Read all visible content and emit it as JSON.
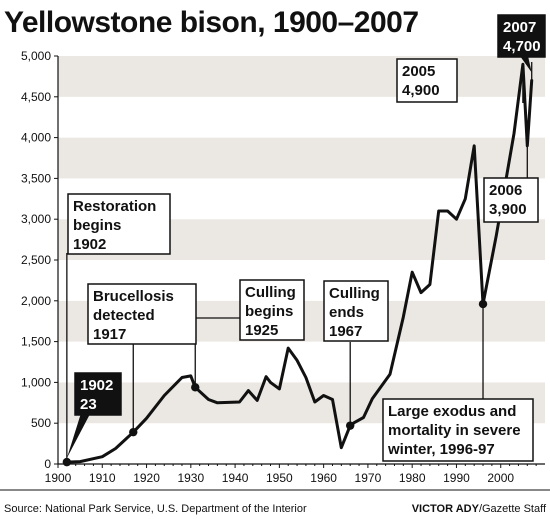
{
  "chart_data": {
    "type": "line",
    "title": "Yellowstone bison, 1900–2007",
    "xlabel": "",
    "ylabel": "",
    "xlim": [
      1900,
      2010
    ],
    "ylim": [
      0,
      5000
    ],
    "x_ticks": [
      "1900",
      "1910",
      "1920",
      "1930",
      "1940",
      "1950",
      "1960",
      "1970",
      "1980",
      "1990",
      "2000"
    ],
    "y_ticks": [
      "0",
      "500",
      "1,000",
      "1,500",
      "2,000",
      "2,500",
      "3,000",
      "3,500",
      "4,000",
      "4,500",
      "5,000"
    ],
    "grid": "alternating horizontal bands",
    "series": [
      {
        "x": [
          1902,
          1905,
          1910,
          1913,
          1917,
          1920,
          1924,
          1928,
          1930,
          1931,
          1934,
          1936,
          1941,
          1943,
          1945,
          1947,
          1948,
          1950,
          1952,
          1954,
          1956,
          1958,
          1960,
          1962,
          1964,
          1966,
          1967,
          1969,
          1971,
          1975,
          1978,
          1980,
          1982,
          1984,
          1986,
          1988,
          1990,
          1992,
          1994,
          1996,
          1999,
          2003,
          2005,
          2006,
          2007
        ],
        "y": [
          23,
          30,
          90,
          190,
          390,
          560,
          840,
          1060,
          1080,
          940,
          790,
          750,
          760,
          900,
          780,
          1070,
          1000,
          920,
          1420,
          1270,
          1060,
          760,
          840,
          790,
          200,
          470,
          510,
          570,
          800,
          1100,
          1800,
          2350,
          2100,
          2200,
          3100,
          3100,
          3000,
          3250,
          3900,
          1960,
          2800,
          4050,
          4900,
          3900,
          4700
        ]
      }
    ],
    "markers": [
      {
        "x": 1902,
        "y": 23
      },
      {
        "x": 1917,
        "y": 390
      },
      {
        "x": 1931,
        "y": 940
      },
      {
        "x": 1966,
        "y": 470
      },
      {
        "x": 1996,
        "y": 1960
      }
    ],
    "annotations": [
      {
        "id": "restoration",
        "lines": [
          "Restoration",
          "begins",
          "1902"
        ],
        "x": 1902
      },
      {
        "id": "brucellosis",
        "lines": [
          "Brucellosis",
          "detected",
          "1917"
        ],
        "x": 1917
      },
      {
        "id": "culling_begins",
        "lines": [
          "Culling",
          "begins",
          "1925"
        ],
        "x": 1931
      },
      {
        "id": "culling_ends",
        "lines": [
          "Culling",
          "ends",
          "1967"
        ],
        "x": 1966
      },
      {
        "id": "exodus",
        "lines": [
          "Large exodus and",
          "mortality in severe",
          "winter, 1996-97"
        ],
        "x": 1996
      },
      {
        "id": "y1902",
        "lines": [
          "1902",
          "23"
        ],
        "x": 1902
      },
      {
        "id": "y2005",
        "lines": [
          "2005",
          "4,900"
        ],
        "x": 2005
      },
      {
        "id": "y2006",
        "lines": [
          "2006",
          "3,900"
        ],
        "x": 2006
      },
      {
        "id": "y2007",
        "lines": [
          "2007",
          "4,700"
        ],
        "x": 2007
      }
    ]
  },
  "footer": {
    "source": "Source: National Park Service, U.S. Department of the Interior",
    "credit_name": "VICTOR ADY",
    "credit_rest": "/Gazette Staff"
  },
  "colors": {
    "line": "#111111",
    "band": "#ebe7e2",
    "background": "#ffffff",
    "label_inverse_bg": "#111111"
  }
}
